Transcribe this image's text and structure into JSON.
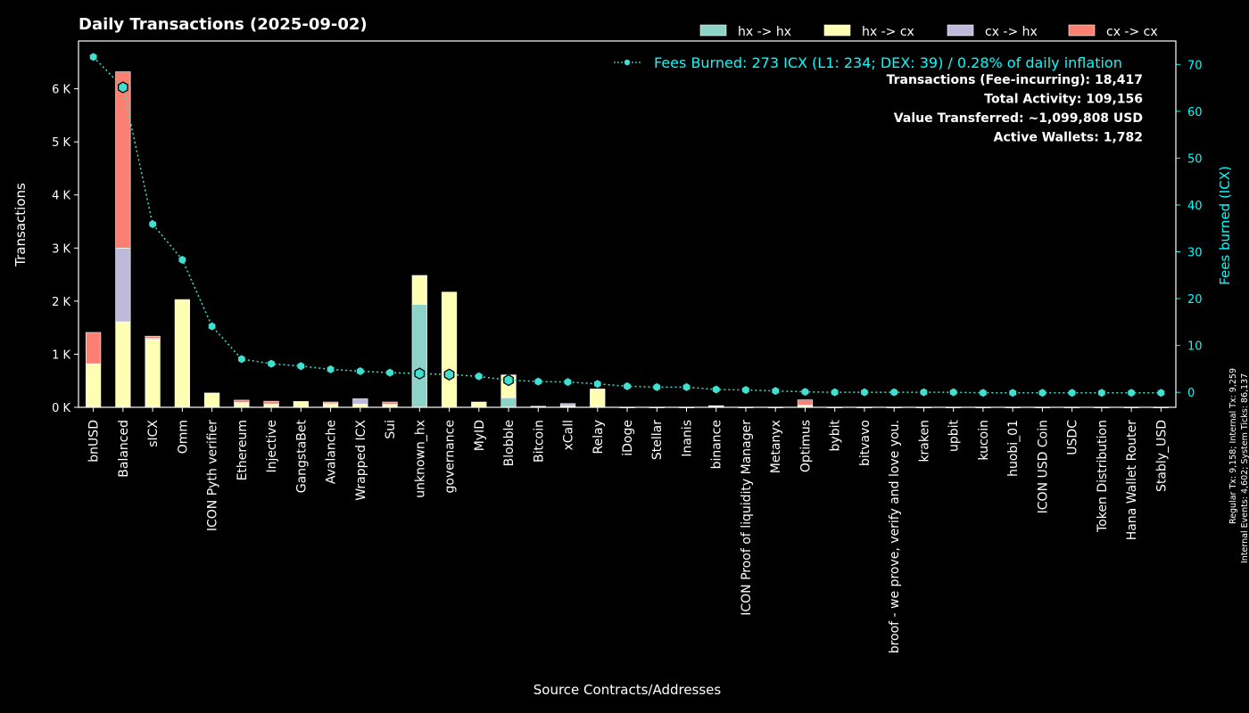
{
  "colors": {
    "background": "#000000",
    "hx_hx": "#8dd3c7",
    "hx_cx": "#ffffb3",
    "cx_hx": "#bebada",
    "cx_cx": "#fb8072",
    "fees": "#40e0d0",
    "right_axis": "#00ffff"
  },
  "chart_data": {
    "type": "bar",
    "stacked": true,
    "title": "Daily Transactions (2025-09-02)",
    "xlabel": "Source Contracts/Addresses",
    "ylabel": "Transactions",
    "y2label": "Fees burned (ICX)",
    "ylim": [
      0,
      6900
    ],
    "y2lim": [
      -3.2,
      75
    ],
    "yticks": [
      0,
      1000,
      2000,
      3000,
      4000,
      5000,
      6000
    ],
    "ytick_labels": [
      "0 K",
      "1 K",
      "2 K",
      "3 K",
      "4 K",
      "5 K",
      "6 K"
    ],
    "y2ticks": [
      0,
      10,
      20,
      30,
      40,
      50,
      60,
      70
    ],
    "y2tick_labels": [
      "0",
      "10",
      "20",
      "30",
      "40",
      "50",
      "60",
      "70"
    ],
    "categories": [
      "bnUSD",
      "Balanced",
      "sICX",
      "Omm",
      "ICON Pyth verifier",
      "Ethereum",
      "Injective",
      "GangstaBet",
      "Avalanche",
      "Wrapped ICX",
      "Sui",
      "unknown_hx",
      "governance",
      "MyID",
      "Blobble",
      "Bitcoin",
      "xCall",
      "Relay",
      "iDoge",
      "Stellar",
      "Inanis",
      "binance",
      "ICON Proof of liquidity Manager",
      "Metanyx",
      "Optimus",
      "bybit",
      "bitvavo",
      "broof - we prove, verify and love you.",
      "kraken",
      "upbit",
      "kucoin",
      "huobi_01",
      "ICON USD Coin",
      "USDC",
      "Token Distribution",
      "Hana Wallet Router",
      "Stably_USD"
    ],
    "series": [
      {
        "name": "hx -> hx",
        "values": [
          0,
          0,
          0,
          0,
          0,
          0,
          0,
          0,
          0,
          0,
          0,
          1940,
          0,
          0,
          180,
          0,
          0,
          0,
          0,
          0,
          0,
          0,
          0,
          0,
          0,
          0,
          0,
          0,
          0,
          0,
          0,
          0,
          0,
          0,
          0,
          0,
          0
        ]
      },
      {
        "name": "hx -> cx",
        "values": [
          820,
          1610,
          1280,
          2030,
          270,
          80,
          55,
          110,
          60,
          60,
          50,
          530,
          2170,
          100,
          430,
          15,
          20,
          345,
          0,
          0,
          0,
          20,
          0,
          0,
          30,
          0,
          0,
          0,
          0,
          0,
          0,
          0,
          0,
          0,
          0,
          0,
          0
        ]
      },
      {
        "name": "cx -> hx",
        "values": [
          0,
          1390,
          20,
          0,
          0,
          15,
          10,
          0,
          10,
          100,
          10,
          15,
          0,
          0,
          0,
          5,
          50,
          0,
          3,
          3,
          3,
          10,
          3,
          3,
          10,
          3,
          3,
          3,
          3,
          3,
          3,
          3,
          3,
          3,
          3,
          3,
          3
        ]
      },
      {
        "name": "cx -> cx",
        "values": [
          590,
          3320,
          40,
          0,
          0,
          40,
          50,
          0,
          30,
          0,
          40,
          0,
          0,
          0,
          0,
          0,
          0,
          0,
          0,
          0,
          0,
          0,
          0,
          0,
          100,
          0,
          0,
          0,
          0,
          0,
          0,
          0,
          0,
          0,
          0,
          0,
          0
        ]
      }
    ],
    "fees_series": {
      "name": "Fees Burned: 273 ICX (L1: 234; DEX: 39) / 0.28% of daily inflation",
      "values": [
        71.6,
        65.1,
        35.9,
        28.3,
        14.1,
        7.1,
        6.1,
        5.6,
        4.9,
        4.5,
        4.2,
        4.0,
        3.8,
        3.4,
        2.6,
        2.3,
        2.2,
        1.8,
        1.3,
        1.1,
        1.1,
        0.6,
        0.5,
        0.3,
        0.1,
        0.0,
        0.0,
        0.0,
        0.0,
        0.0,
        -0.1,
        -0.1,
        -0.1,
        -0.1,
        -0.1,
        -0.1,
        -0.1
      ],
      "highlighted_indices": [
        1,
        11,
        12,
        14
      ]
    },
    "legend": [
      "hx -> hx",
      "hx -> cx",
      "cx -> hx",
      "cx -> cx"
    ],
    "legend_position": "top-right",
    "stats": [
      "Transactions (Fee-incurring): 18,417",
      "Total Activity: 109,156",
      "Value Transferred: ~1,099,808 USD",
      "Active Wallets: 1,782"
    ],
    "side_note": [
      "Regular Tx: 9,158; Internal Tx: 9,259",
      "Internal Events: 4,602; System Ticks: 86,137"
    ]
  }
}
